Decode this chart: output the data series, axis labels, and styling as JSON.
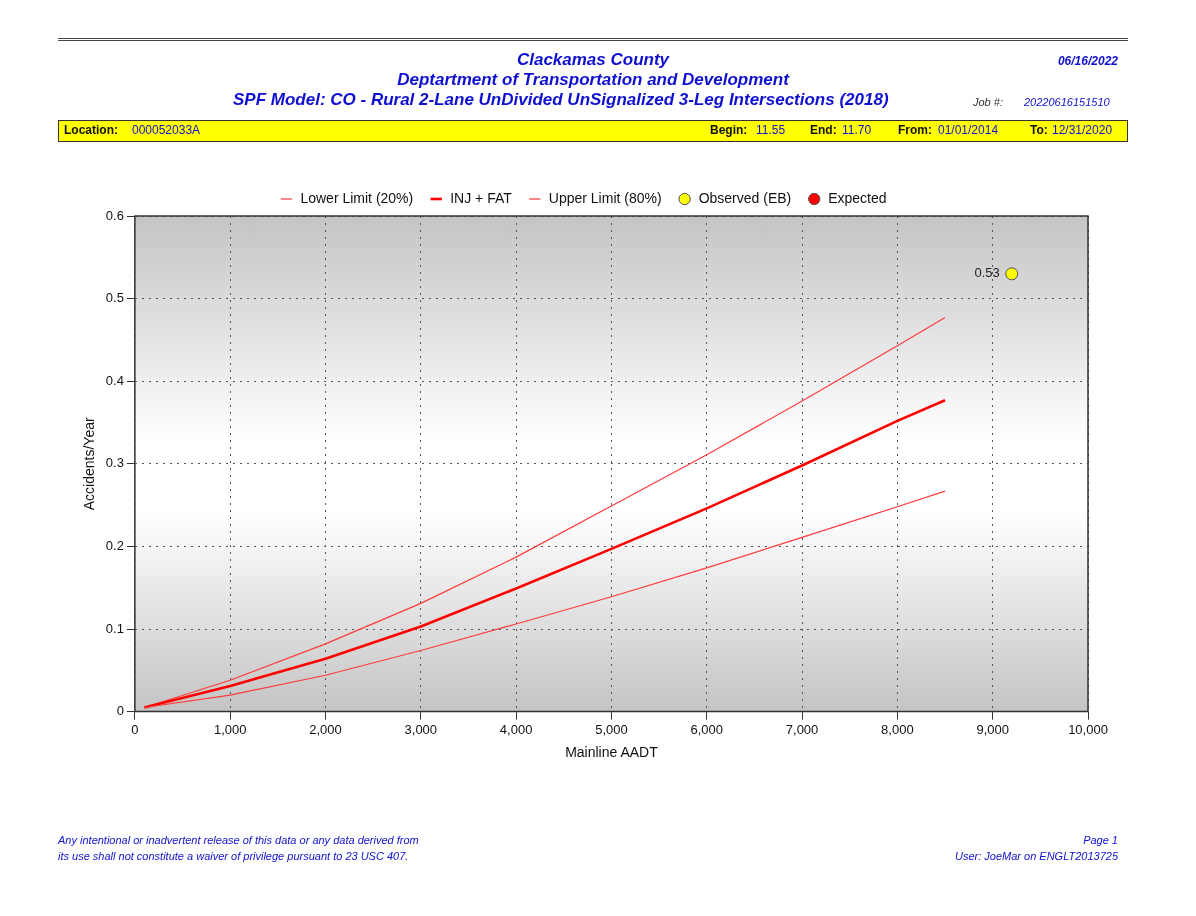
{
  "chart_data": {
    "type": "line",
    "title": "Clackamas County",
    "subtitle": "Deptartment of Transportation and Development",
    "annotations": [
      "SPF Model: CO - Rural 2-Lane UnDivided UnSignalized 3-Leg Intersections (2018)",
      "06/16/2022",
      "Job #:",
      "20220616151510",
      "Location:",
      "000052033A",
      "Begin:",
      "11.55",
      "End:",
      "11.70",
      "From:",
      "01/01/2014",
      "To:",
      "12/31/2020",
      "Any intentional or inadvertent release of this data or any data derived from",
      "its use shall not constitute a waiver of privilege pursuant to 23 USC 407.",
      "Page 1",
      "User: JoeMar on ENGLT2013725"
    ],
    "xlabel": "Mainline AADT",
    "ylabel": "Accidents/Year",
    "series": [
      {
        "name": "Lower Limit (20%)",
        "color": "#ff3b3b",
        "x": [
          100,
          1000,
          2000,
          3000,
          4000,
          5000,
          6000,
          7000,
          8000,
          8500
        ],
        "values": [
          0.005,
          0.02,
          0.044,
          0.074,
          0.106,
          0.139,
          0.174,
          0.211,
          0.248,
          0.267
        ]
      },
      {
        "name": "INJ + FAT",
        "color": "#ff0000",
        "x": [
          100,
          1000,
          2000,
          3000,
          4000,
          5000,
          6000,
          7000,
          8000,
          8500
        ],
        "values": [
          0.005,
          0.031,
          0.064,
          0.103,
          0.149,
          0.197,
          0.246,
          0.298,
          0.352,
          0.377
        ]
      },
      {
        "name": "Upper Limit (80%)",
        "color": "#ff3b3b",
        "x": [
          100,
          1000,
          2000,
          3000,
          4000,
          5000,
          6000,
          7000,
          8000,
          8500
        ],
        "values": [
          0.005,
          0.038,
          0.082,
          0.131,
          0.187,
          0.249,
          0.311,
          0.376,
          0.443,
          0.477
        ]
      },
      {
        "name": "Observed (EB)",
        "type": "scatter",
        "color": "#ffff00",
        "x": [
          9200
        ],
        "values": [
          0.53
        ],
        "value_labels": [
          "0.53"
        ],
        "marker": "circle"
      },
      {
        "name": "Expected",
        "type": "scatter",
        "color": "#ff0000",
        "marker": "circle"
      }
    ],
    "xlim": [
      0,
      10000
    ],
    "xticks": [
      0,
      {
        "value": 1000,
        "label": "1,000"
      },
      {
        "value": 2000,
        "label": "2,000"
      },
      {
        "value": 3000,
        "label": "3,000"
      },
      {
        "value": 4000,
        "label": "4,000"
      },
      {
        "value": 5000,
        "label": "5,000"
      },
      {
        "value": 6000,
        "label": "6,000"
      },
      {
        "value": 7000,
        "label": "7,000"
      },
      {
        "value": 8000,
        "label": "8,000"
      },
      {
        "value": 9000,
        "label": "9,000"
      },
      {
        "value": 10000,
        "label": "10,000"
      }
    ],
    "ylim": [
      0,
      0.6
    ],
    "yticks": [
      0,
      0.1,
      0.2,
      0.3,
      0.4,
      0.5,
      0.6
    ],
    "grid": true,
    "legend": "top",
    "line_style": "solid"
  }
}
